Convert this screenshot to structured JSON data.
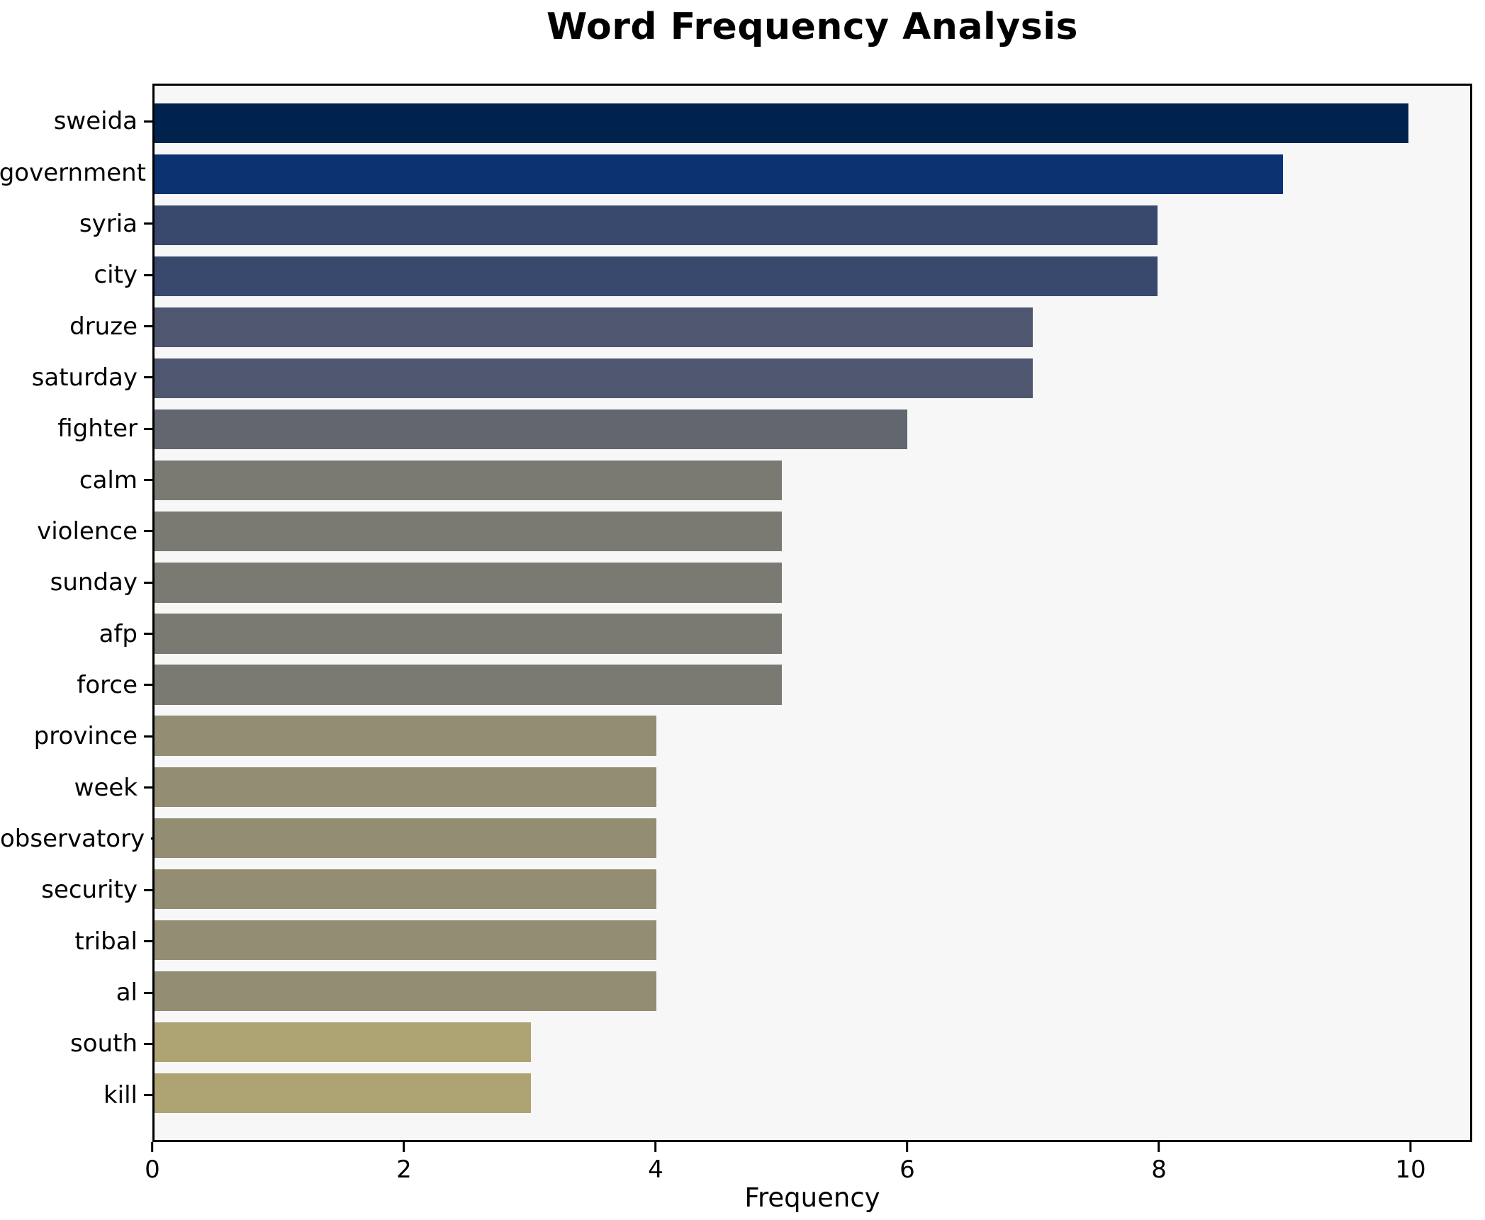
{
  "chart_data": {
    "type": "bar",
    "orientation": "horizontal",
    "title": "Word Frequency Analysis",
    "xlabel": "Frequency",
    "ylabel": "",
    "categories": [
      "sweida",
      "government",
      "syria",
      "city",
      "druze",
      "saturday",
      "fighter",
      "calm",
      "violence",
      "sunday",
      "afp",
      "force",
      "province",
      "week",
      "observatory",
      "security",
      "tribal",
      "al",
      "south",
      "kill"
    ],
    "values": [
      10,
      9,
      8,
      8,
      7,
      7,
      6,
      5,
      5,
      5,
      5,
      5,
      4,
      4,
      4,
      4,
      4,
      4,
      3,
      3
    ],
    "bar_colors": [
      "#00234e",
      "#0d3271",
      "#39496e",
      "#39496e",
      "#4e5670",
      "#4e5670",
      "#62666f",
      "#7a7a73",
      "#7a7a73",
      "#7a7a73",
      "#7a7a73",
      "#7a7a73",
      "#938d74",
      "#938d74",
      "#938d74",
      "#938d74",
      "#938d74",
      "#938d74",
      "#aea373",
      "#aea373"
    ],
    "x_ticks": [
      0,
      2,
      4,
      6,
      8,
      10
    ],
    "xlim": [
      0,
      10.49
    ],
    "grid": false,
    "legend": false,
    "plot_background": "#f7f7f7",
    "figure_background": "#ffffff",
    "frame_color": "#000000"
  }
}
